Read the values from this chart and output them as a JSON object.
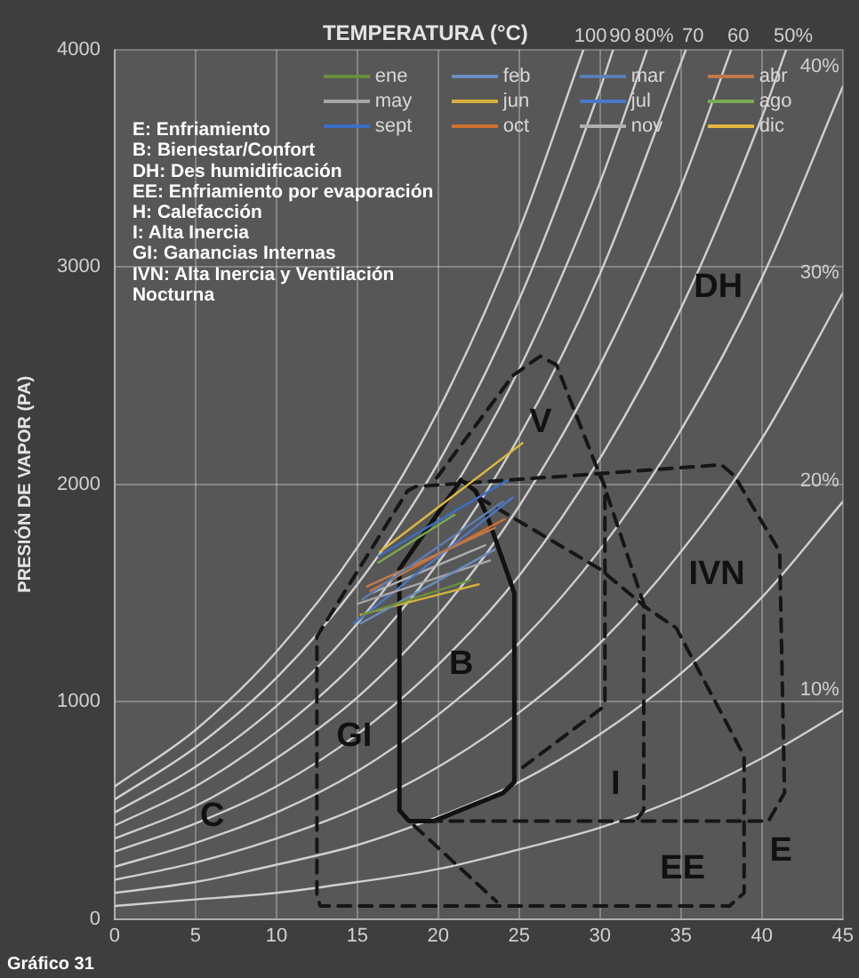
{
  "chart_data": {
    "type": "line",
    "xlabel": "TEMPERATURA (°C)",
    "ylabel": "PRESIÓN DE VAPOR (PA)",
    "xlim": [
      0,
      45
    ],
    "xticks": [
      0,
      5,
      10,
      15,
      20,
      25,
      30,
      35,
      40,
      45
    ],
    "ylim": [
      0,
      4000
    ],
    "yticks": [
      0,
      1000,
      2000,
      3000,
      4000
    ],
    "grid": true,
    "legend": "top right",
    "marker": "none",
    "annotations": [
      "E: Enfriamiento",
      "B: Bienestar/Confort",
      "DH: Des humidificación",
      "EE: Enfriamiento por evaporación",
      "H: Calefacción",
      "I: Alta Inercia",
      "GI: Ganancias Internas",
      "IVN: Alta Inercia y Ventilación",
      "Nocturna",
      "V",
      "DH",
      "IVN",
      "B",
      "GI",
      "I",
      "C",
      "E",
      "EE",
      "Gráfico 31"
    ],
    "series": [
      {
        "name": "ene",
        "color": "#6b8e3e",
        "x": [
          15.3,
          22.0
        ],
        "values": [
          1400,
          1560
        ]
      },
      {
        "name": "feb",
        "color": "#6a8ec0",
        "x": [
          15.2,
          23.5
        ],
        "values": [
          1360,
          1700
        ]
      },
      {
        "name": "mar",
        "color": "#5b7fb5",
        "x": [
          15.3,
          24.0
        ],
        "values": [
          1470,
          1920
        ]
      },
      {
        "name": "abr",
        "color": "#c07a4a",
        "x": [
          15.6,
          23.5
        ],
        "values": [
          1530,
          1800
        ]
      },
      {
        "name": "may",
        "color": "#a6a6a6",
        "x": [
          15.0,
          23.2
        ],
        "values": [
          1450,
          1650
        ]
      },
      {
        "name": "jun",
        "color": "#d4b23a",
        "x": [
          15.2,
          22.5
        ],
        "values": [
          1400,
          1540
        ]
      },
      {
        "name": "jul",
        "color": "#4a78c8",
        "x": [
          14.8,
          24.6
        ],
        "values": [
          1360,
          1940
        ]
      },
      {
        "name": "ago",
        "color": "#7aab4f",
        "x": [
          16.3,
          21.0
        ],
        "values": [
          1640,
          1860
        ]
      },
      {
        "name": "sept",
        "color": "#3b6fc8",
        "x": [
          16.3,
          24.3
        ],
        "values": [
          1670,
          2020
        ]
      },
      {
        "name": "oct",
        "color": "#d07030",
        "x": [
          15.8,
          24.1
        ],
        "values": [
          1510,
          1840
        ]
      },
      {
        "name": "nov",
        "color": "#b0b0b0",
        "x": [
          15.9,
          22.9
        ],
        "values": [
          1500,
          1720
        ]
      },
      {
        "name": "dic",
        "color": "#e0b840",
        "x": [
          16.4,
          25.2
        ],
        "values": [
          1690,
          2190
        ]
      },
      {
        "color": "#161616",
        "line_style": "dashed",
        "x": [
          22.5,
          30.0,
          32.9,
          34.7,
          38.9,
          38.9,
          38.0,
          12.7,
          12.5,
          12.5,
          18.1,
          18.6,
          30.1,
          37.5,
          38.3,
          41.1,
          41.4,
          40.4,
          19.7
        ],
        "values": [
          1940,
          1610,
          1430,
          1340,
          750,
          120,
          60,
          60,
          110,
          1300,
          1970,
          1990,
          2050,
          2090,
          2040,
          1690,
          580,
          450,
          450
        ]
      },
      {
        "color": "#161616",
        "line_style": "dashed",
        "x": [
          19.9,
          24.6,
          26.3,
          27.3,
          30.0,
          30.3,
          30.3,
          30.1,
          24.9
        ],
        "values": [
          2030,
          2500,
          2590,
          2550,
          2040,
          1990,
          1000,
          970,
          680
        ]
      },
      {
        "color": "#161616",
        "line_style": "dashed",
        "x": [
          30.0,
          32.7,
          32.7,
          32.2
        ],
        "values": [
          2050,
          1450,
          500,
          450
        ]
      },
      {
        "color": "#161616",
        "line_style": "dashed",
        "x": [
          18.5,
          23.6
        ],
        "values": [
          430,
          80
        ]
      },
      {
        "color": "#111111",
        "line_style": "solid",
        "x": [
          21.4,
          17.6,
          17.6,
          18.2,
          19.7,
          24.0,
          24.7,
          24.7,
          23.0,
          22.3,
          21.6
        ],
        "values": [
          2020,
          1610,
          500,
          450,
          450,
          580,
          630,
          1500,
          1860,
          1970,
          2010
        ]
      },
      {
        "name": "100",
        "color": "#d0d0d0",
        "x": [
          0,
          5,
          10,
          15,
          20,
          25,
          28.97
        ],
        "values": [
          610,
          870,
          1230,
          1710,
          2340,
          3170,
          4000
        ]
      },
      {
        "name": "90",
        "color": "#d0d0d0",
        "x": [
          0,
          5,
          10,
          15,
          20,
          25,
          30,
          30.8
        ],
        "values": [
          550,
          790,
          1110,
          1540,
          2100,
          2850,
          3820,
          4000
        ]
      },
      {
        "name": "80%",
        "color": "#d0d0d0",
        "x": [
          0,
          5,
          10,
          15,
          20,
          25,
          30,
          32.9
        ],
        "values": [
          490,
          700,
          980,
          1360,
          1870,
          2530,
          3390,
          4000
        ]
      },
      {
        "name": "70",
        "color": "#d0d0d0",
        "x": [
          0,
          5,
          10,
          15,
          20,
          25,
          30,
          35,
          35.3
        ],
        "values": [
          430,
          610,
          860,
          1190,
          1640,
          2220,
          2970,
          3940,
          4000
        ]
      },
      {
        "name": "60",
        "color": "#d0d0d0",
        "x": [
          0,
          5,
          10,
          15,
          20,
          25,
          30,
          35,
          38.1
        ],
        "values": [
          370,
          520,
          740,
          1020,
          1400,
          1900,
          2550,
          3370,
          4000
        ]
      },
      {
        "name": "50%",
        "color": "#d0d0d0",
        "x": [
          0,
          5,
          10,
          15,
          20,
          25,
          30,
          35,
          40,
          41.5
        ],
        "values": [
          310,
          440,
          610,
          850,
          1170,
          1580,
          2120,
          2810,
          3690,
          4000
        ]
      },
      {
        "name": "40%",
        "color": "#d0d0d0",
        "x": [
          0,
          5,
          10,
          15,
          20,
          25,
          30,
          35,
          40,
          45
        ],
        "values": [
          240,
          350,
          490,
          680,
          940,
          1270,
          1700,
          2250,
          2950,
          3830
        ]
      },
      {
        "name": "30%",
        "color": "#d0d0d0",
        "x": [
          0,
          5,
          10,
          15,
          20,
          25,
          30,
          35,
          40,
          45
        ],
        "values": [
          180,
          260,
          370,
          510,
          700,
          950,
          1270,
          1690,
          2210,
          2880
        ]
      },
      {
        "name": "20%",
        "color": "#d0d0d0",
        "x": [
          0,
          5,
          10,
          15,
          20,
          25,
          30,
          35,
          40,
          45
        ],
        "values": [
          120,
          170,
          250,
          340,
          470,
          630,
          850,
          1130,
          1480,
          1920
        ]
      },
      {
        "name": "10%",
        "color": "#d0d0d0",
        "x": [
          0,
          5,
          10,
          15,
          20,
          25,
          30,
          35,
          40,
          45
        ],
        "values": [
          60,
          90,
          120,
          170,
          230,
          320,
          420,
          560,
          740,
          960
        ]
      }
    ]
  }
}
